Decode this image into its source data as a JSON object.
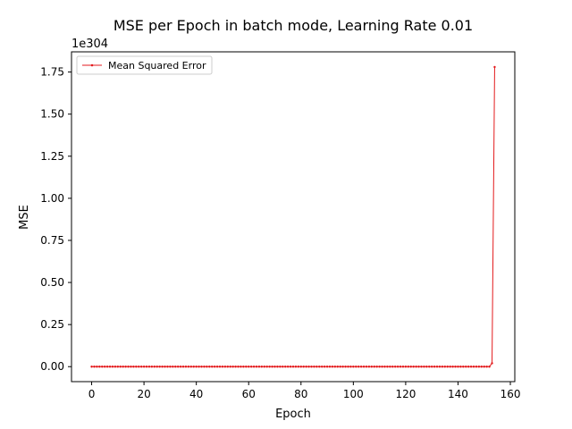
{
  "chart_data": {
    "type": "line",
    "title": "MSE per Epoch in batch mode, Learning Rate 0.01",
    "xlabel": "Epoch",
    "ylabel": "MSE",
    "y_offset_label": "1e304",
    "xlim": [
      -7.7,
      161.7
    ],
    "ylim": [
      -0.089,
      1.87
    ],
    "x_ticks": [
      0,
      20,
      40,
      60,
      80,
      100,
      120,
      140,
      160
    ],
    "x_tick_labels": [
      "0",
      "20",
      "40",
      "60",
      "80",
      "100",
      "120",
      "140",
      "160"
    ],
    "y_ticks": [
      0,
      0.25,
      0.5,
      0.75,
      1.0,
      1.25,
      1.5,
      1.75
    ],
    "y_tick_labels": [
      "0.00",
      "0.25",
      "0.50",
      "0.75",
      "1.00",
      "1.25",
      "1.50",
      "1.75"
    ],
    "legend_position": "upper-left",
    "grid": false,
    "series": [
      {
        "name": "Mean Squared Error",
        "color": "#e31a1c",
        "x_start": 0,
        "x_end": 154,
        "values_note": "values are in units of 1e304",
        "values": [
          0,
          0,
          0,
          0,
          0,
          0,
          0,
          0,
          0,
          0,
          0,
          0,
          0,
          0,
          0,
          0,
          0,
          0,
          0,
          0,
          0,
          0,
          0,
          0,
          0,
          0,
          0,
          0,
          0,
          0,
          0,
          0,
          0,
          0,
          0,
          0,
          0,
          0,
          0,
          0,
          0,
          0,
          0,
          0,
          0,
          0,
          0,
          0,
          0,
          0,
          0,
          0,
          0,
          0,
          0,
          0,
          0,
          0,
          0,
          0,
          0,
          0,
          0,
          0,
          0,
          0,
          0,
          0,
          0,
          0,
          0,
          0,
          0,
          0,
          0,
          0,
          0,
          0,
          0,
          0,
          0,
          0,
          0,
          0,
          0,
          0,
          0,
          0,
          0,
          0,
          0,
          0,
          0,
          0,
          0,
          0,
          0,
          0,
          0,
          0,
          0,
          0,
          0,
          0,
          0,
          0,
          0,
          0,
          0,
          0,
          0,
          0,
          0,
          0,
          0,
          0,
          0,
          0,
          0,
          0,
          0,
          0,
          0,
          0,
          0,
          0,
          0,
          0,
          0,
          0,
          0,
          0,
          0,
          0,
          0,
          0,
          0,
          0,
          0,
          0,
          0,
          0,
          0,
          0,
          0,
          0,
          0,
          0,
          0,
          0,
          0,
          0,
          0,
          0.02,
          1.78
        ]
      }
    ]
  }
}
